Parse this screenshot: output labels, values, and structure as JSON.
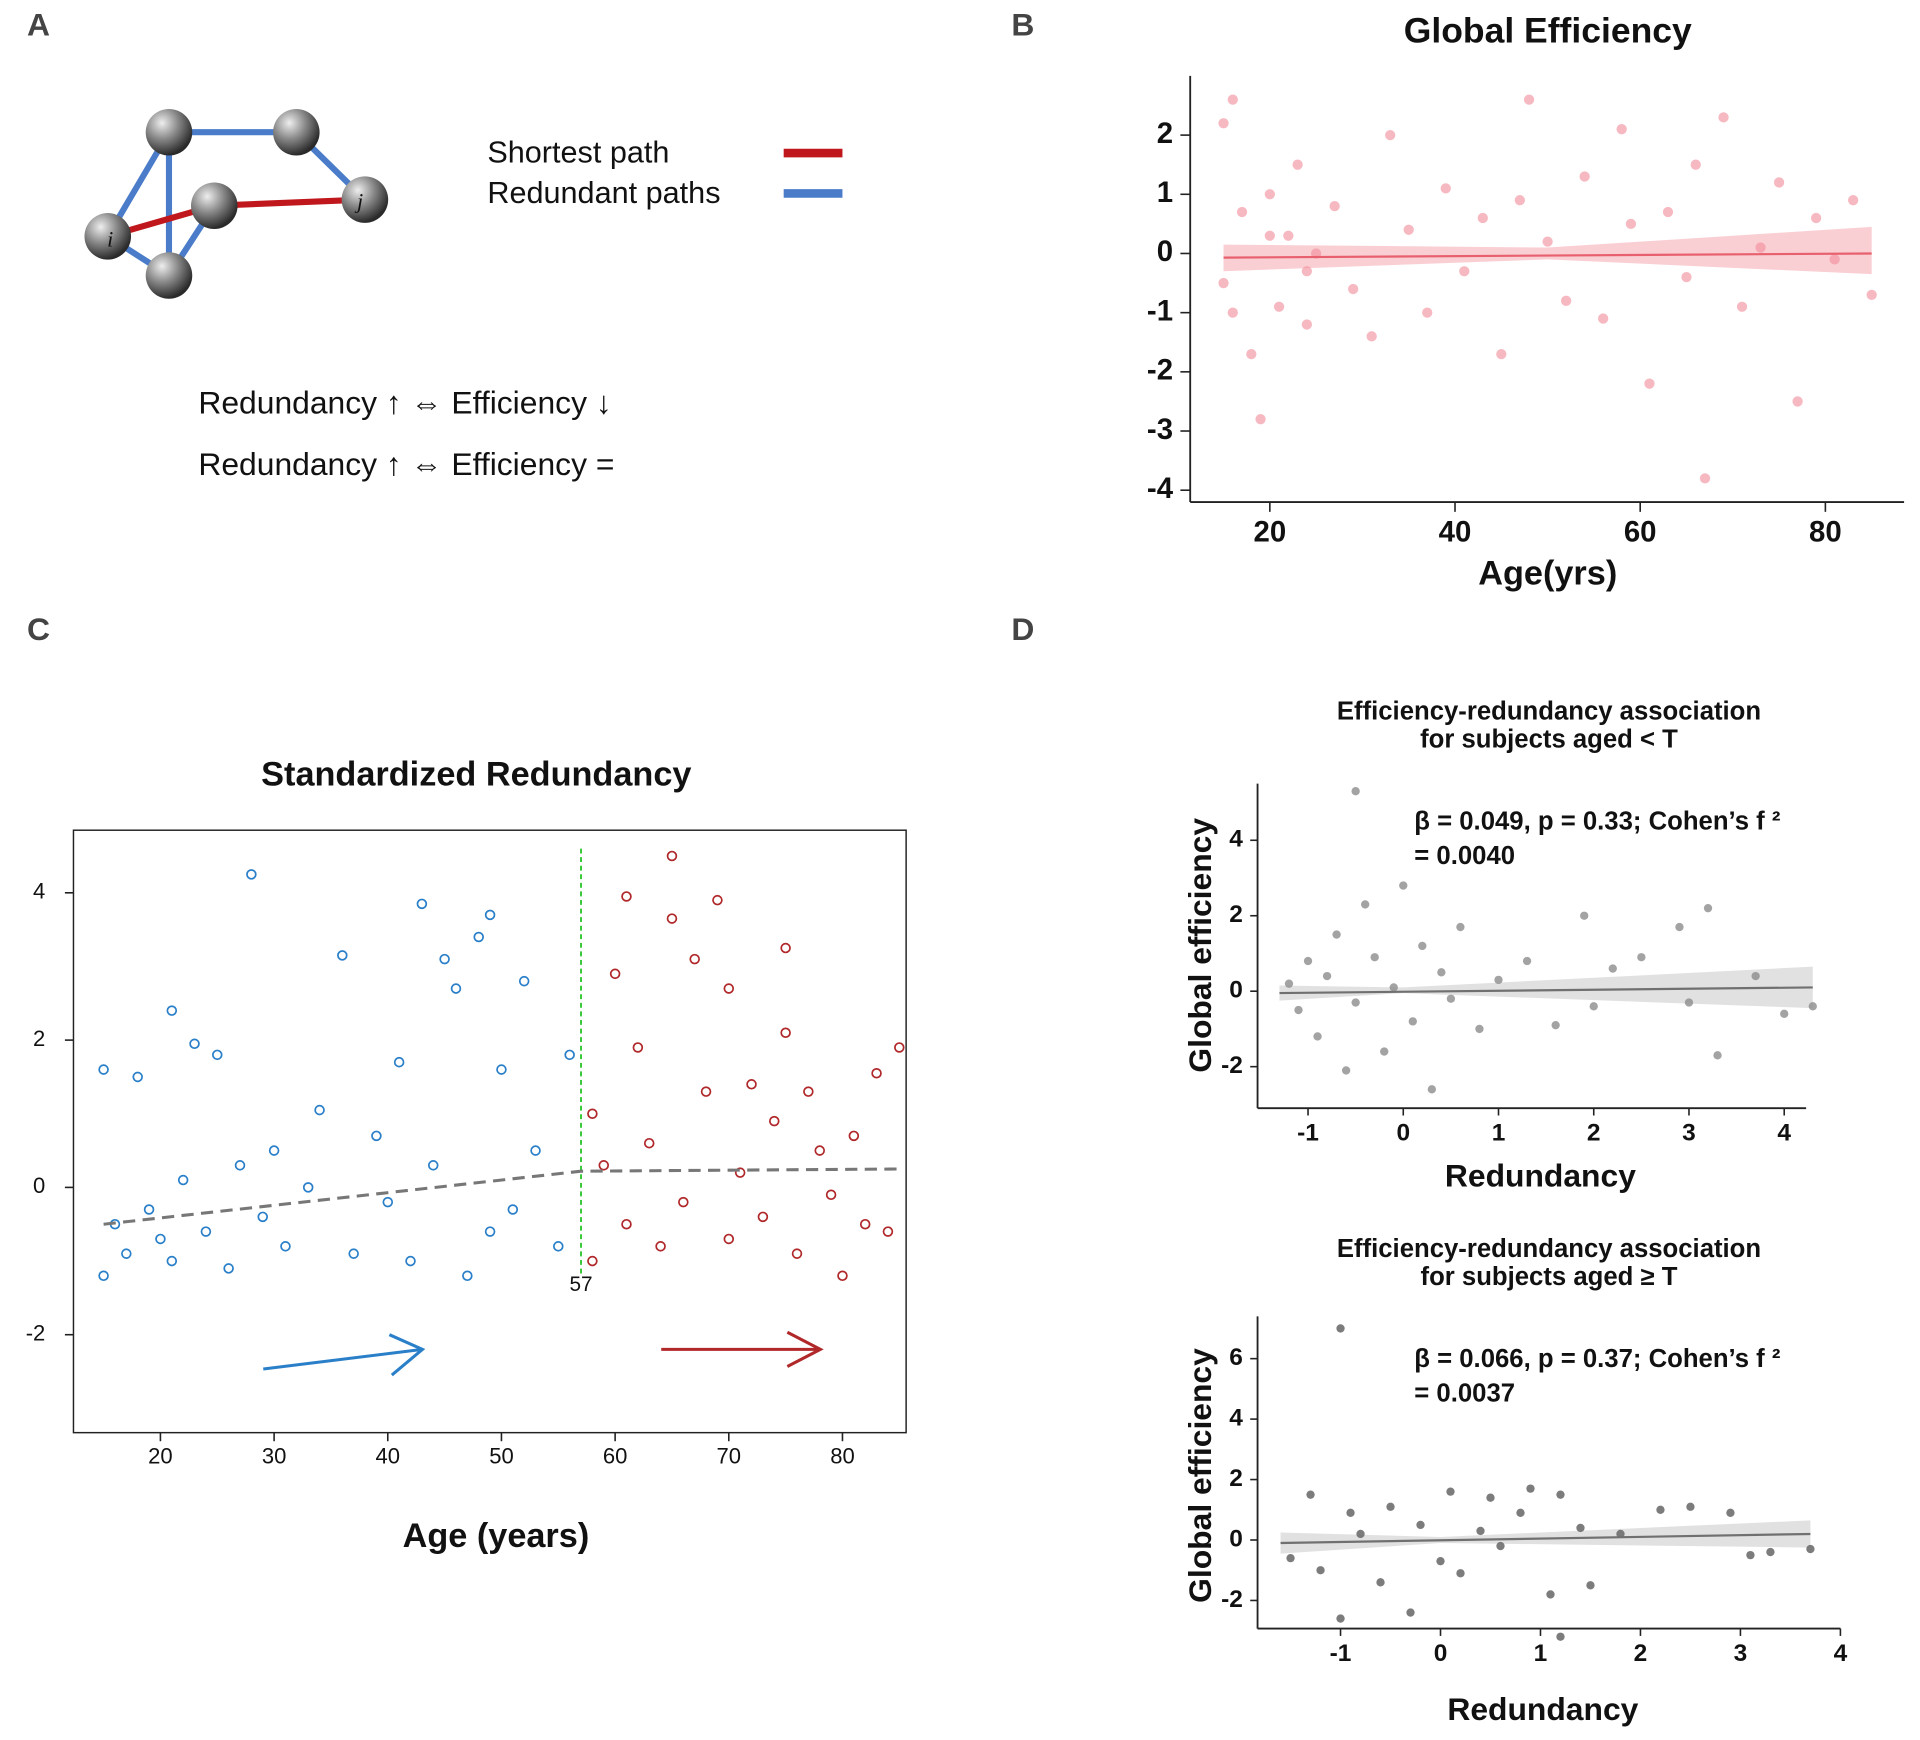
{
  "panel_labels": [
    "A",
    "B",
    "C",
    "D"
  ],
  "diagram": {
    "node_labels": [
      "i",
      "j"
    ],
    "legend": [
      {
        "label": "Shortest path",
        "color": "#c0171c"
      },
      {
        "label": "Redundant paths",
        "color": "#4a7cc9"
      }
    ],
    "equations": [
      "Redundancy ↑ ⇔ Efficiency ↓",
      "Redundancy ↑ ⇔ Efficiency ="
    ]
  },
  "chart_data": [
    {
      "type": "scatter",
      "title": "Global Efficiency",
      "x_label": "Age(yrs)",
      "marker": "filled",
      "xlim": [
        11.4,
        88.5
      ],
      "ylim": [
        -4.2,
        3
      ],
      "xticks": [
        20,
        40,
        60,
        80
      ],
      "yticks": [
        -4,
        -3,
        -2,
        -1,
        0,
        1,
        2
      ],
      "series": [
        {
          "color": "#f28b97",
          "x": [
            15,
            15,
            16,
            17,
            18,
            19,
            20,
            21,
            22,
            23,
            24,
            25,
            27,
            29,
            31,
            33,
            35,
            37,
            39,
            41,
            43,
            45,
            47,
            48,
            50,
            52,
            54,
            56,
            58,
            59,
            61,
            63,
            65,
            66,
            67,
            69,
            71,
            73,
            75,
            77,
            79,
            81,
            83,
            85,
            16,
            20,
            24
          ],
          "values": [
            2.2,
            -0.5,
            2.6,
            0.7,
            -1.7,
            -2.8,
            1.0,
            -0.9,
            0.3,
            1.5,
            -1.2,
            0.0,
            0.8,
            -0.6,
            -1.4,
            2.0,
            0.4,
            -1.0,
            1.1,
            -0.3,
            0.6,
            -1.7,
            0.9,
            2.6,
            0.2,
            -0.8,
            1.3,
            -1.1,
            2.1,
            0.5,
            -2.2,
            0.7,
            -0.4,
            1.5,
            -3.8,
            2.3,
            -0.9,
            0.1,
            1.2,
            -2.5,
            0.6,
            -0.1,
            0.9,
            -0.7,
            -1.0,
            0.3,
            -0.3
          ]
        }
      ],
      "trend": {
        "color": "#e8606e",
        "x": [
          15,
          85
        ],
        "values": [
          -0.07,
          0.0
        ]
      },
      "band": {
        "color": "#f7c3c9",
        "x": [
          15,
          50,
          85
        ],
        "lower": [
          -0.3,
          -0.1,
          -0.35
        ],
        "upper": [
          0.15,
          0.1,
          0.45
        ]
      }
    },
    {
      "type": "scatter",
      "title": "Standardized Redundancy",
      "x_label": "Age (years)",
      "marker": "hollow",
      "frame": true,
      "xlim": [
        12.35,
        85.6
      ],
      "ylim": [
        -3.33,
        4.85
      ],
      "xticks": [
        20,
        30,
        40,
        50,
        60,
        70,
        80
      ],
      "yticks": [
        -2,
        0,
        2,
        4
      ],
      "threshold": 57,
      "threshold_color": "#2bc52b",
      "series": [
        {
          "color": "#2a7fc9",
          "x": [
            15,
            15,
            16,
            17,
            18,
            19,
            20,
            21,
            21,
            22,
            23,
            24,
            25,
            26,
            27,
            28,
            29,
            30,
            31,
            33,
            34,
            36,
            37,
            39,
            40,
            41,
            42,
            43,
            44,
            45,
            46,
            47,
            48,
            49,
            49,
            50,
            51,
            52,
            53,
            55,
            56
          ],
          "values": [
            1.6,
            -1.2,
            -0.5,
            -0.9,
            1.5,
            -0.3,
            -0.7,
            2.4,
            -1.0,
            0.1,
            1.95,
            -0.6,
            1.8,
            -1.1,
            0.3,
            4.25,
            -0.4,
            0.5,
            -0.8,
            0.0,
            1.05,
            3.15,
            -0.9,
            0.7,
            -0.2,
            1.7,
            -1.0,
            3.85,
            0.3,
            3.1,
            2.7,
            -1.2,
            3.4,
            3.7,
            -0.6,
            1.6,
            -0.3,
            2.8,
            0.5,
            -0.8,
            1.8
          ]
        },
        {
          "color": "#b0282a",
          "x": [
            58,
            58,
            59,
            60,
            61,
            61,
            62,
            63,
            64,
            65,
            65,
            66,
            67,
            68,
            69,
            70,
            70,
            71,
            72,
            73,
            74,
            75,
            75,
            76,
            77,
            78,
            79,
            80,
            81,
            82,
            83,
            84,
            85
          ],
          "values": [
            1.0,
            -1.0,
            0.3,
            2.9,
            3.95,
            -0.5,
            1.9,
            0.6,
            -0.8,
            4.5,
            3.65,
            -0.2,
            3.1,
            1.3,
            3.9,
            2.7,
            -0.7,
            0.2,
            1.4,
            -0.4,
            0.9,
            3.25,
            2.1,
            -0.9,
            1.3,
            0.5,
            -0.1,
            -1.2,
            0.7,
            -0.5,
            1.55,
            -0.6,
            1.9
          ]
        }
      ],
      "trend": {
        "color": "#777777",
        "dashed": true,
        "x": [
          15,
          57,
          85
        ],
        "values": [
          -0.5,
          0.22,
          0.25
        ]
      }
    },
    {
      "type": "scatter",
      "title": [
        "Efficiency-redundancy association",
        "for subjects aged < T"
      ],
      "x_label": "Redundancy",
      "y_label": "Global efficiency",
      "annotation": [
        "β = 0.049, p = 0.33; Cohen’s f ²",
        "= 0.0040"
      ],
      "marker": "filled",
      "xlim": [
        -1.53,
        4.23
      ],
      "ylim": [
        -3.1,
        5.5
      ],
      "xticks": [
        -1,
        0,
        1,
        2,
        3,
        4
      ],
      "yticks": [
        -2,
        0,
        2,
        4
      ],
      "series": [
        {
          "color": "#8c8c8c",
          "x": [
            -1.2,
            -1.1,
            -1.0,
            -0.9,
            -0.8,
            -0.7,
            -0.6,
            -0.5,
            -0.5,
            -0.4,
            -0.3,
            -0.2,
            -0.1,
            0.0,
            0.1,
            0.2,
            0.3,
            0.4,
            0.5,
            0.6,
            0.8,
            1.0,
            1.3,
            1.6,
            1.9,
            2.0,
            2.2,
            2.5,
            2.9,
            3.0,
            3.2,
            3.3,
            3.7,
            4.0,
            4.3
          ],
          "values": [
            0.2,
            -0.5,
            0.8,
            -1.2,
            0.4,
            1.5,
            -2.1,
            5.3,
            -0.3,
            2.3,
            0.9,
            -1.6,
            0.1,
            2.8,
            -0.8,
            1.2,
            -2.6,
            0.5,
            -0.2,
            1.7,
            -1.0,
            0.3,
            0.8,
            -0.9,
            2.0,
            -0.4,
            0.6,
            0.9,
            1.7,
            -0.3,
            2.2,
            -1.7,
            0.4,
            -0.6,
            -0.4
          ]
        }
      ],
      "trend": {
        "color": "#707070",
        "x": [
          -1.3,
          4.3
        ],
        "values": [
          -0.05,
          0.1
        ]
      },
      "band": {
        "color": "#d9d9d9",
        "x": [
          -1.3,
          0,
          4.3
        ],
        "lower": [
          -0.25,
          -0.05,
          -0.45
        ],
        "upper": [
          0.15,
          0.1,
          0.65
        ]
      }
    },
    {
      "type": "scatter",
      "title": [
        "Efficiency-redundancy association",
        "for subjects aged ≥ T"
      ],
      "x_label": "Redundancy",
      "y_label": "Global efficiency",
      "annotation": [
        "β = 0.066, p = 0.37; Cohen’s f ²",
        "= 0.0037"
      ],
      "marker": "filled",
      "xlim": [
        -1.83,
        4
      ],
      "ylim": [
        -2.93,
        7.4
      ],
      "xticks": [
        -1,
        0,
        1,
        2,
        3,
        4
      ],
      "yticks": [
        -2,
        0,
        2,
        4,
        6
      ],
      "series": [
        {
          "color": "#6e6e6e",
          "x": [
            -1.5,
            -1.3,
            -1.2,
            -1.0,
            -1.0,
            -0.9,
            -0.8,
            -0.6,
            -0.5,
            -0.3,
            -0.2,
            0.0,
            0.1,
            0.2,
            0.4,
            0.5,
            0.6,
            0.8,
            0.9,
            1.1,
            1.2,
            1.2,
            1.4,
            1.5,
            1.8,
            2.2,
            2.5,
            2.9,
            3.1,
            3.3,
            3.7
          ],
          "values": [
            -0.6,
            1.5,
            -1.0,
            7.0,
            -2.6,
            0.9,
            0.2,
            -1.4,
            1.1,
            -2.4,
            0.5,
            -0.7,
            1.6,
            -1.1,
            0.3,
            1.4,
            -0.2,
            0.9,
            1.7,
            -1.8,
            1.5,
            -3.2,
            0.4,
            -1.5,
            0.2,
            1.0,
            1.1,
            0.9,
            -0.5,
            -0.4,
            -0.3
          ]
        }
      ],
      "trend": {
        "color": "#707070",
        "x": [
          -1.6,
          3.7
        ],
        "values": [
          -0.1,
          0.2
        ]
      },
      "band": {
        "color": "#d9d9d9",
        "x": [
          -1.6,
          0,
          3.7
        ],
        "lower": [
          -0.45,
          -0.1,
          -0.25
        ],
        "upper": [
          0.25,
          0.1,
          0.65
        ]
      }
    }
  ]
}
